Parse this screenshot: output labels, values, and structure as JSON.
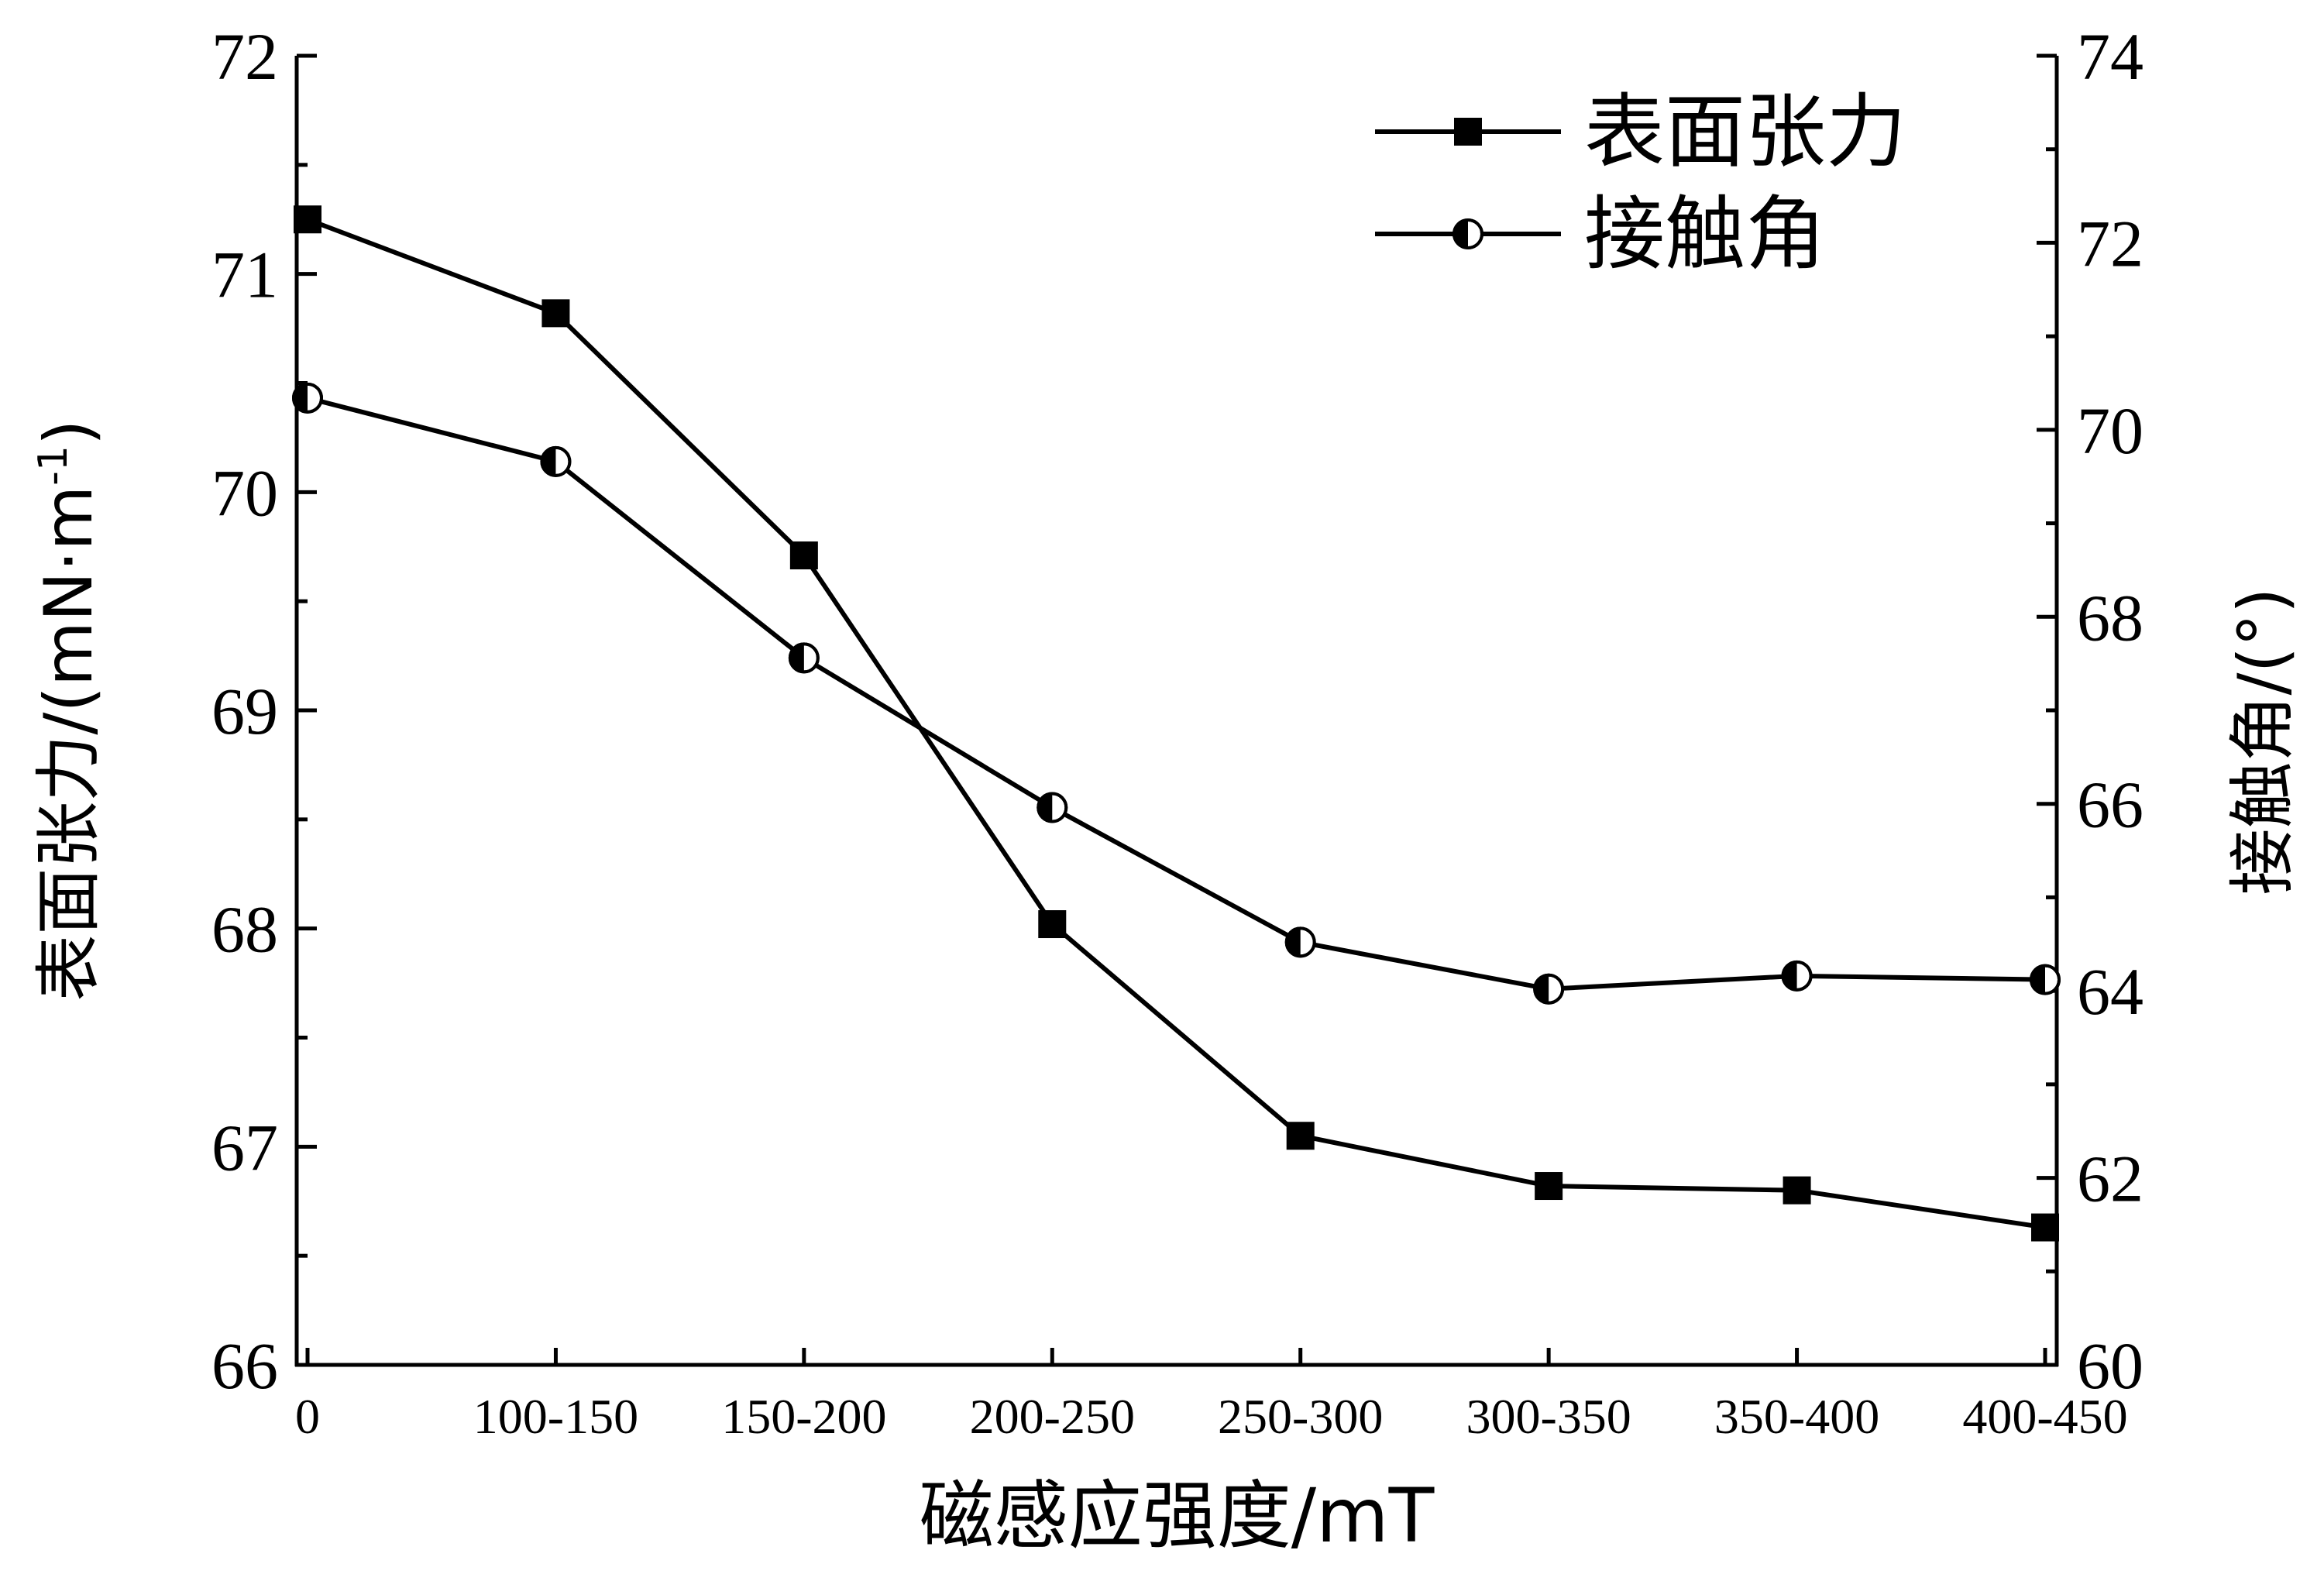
{
  "chart_data": {
    "type": "line",
    "categories": [
      "0",
      "100-150",
      "150-200",
      "200-250",
      "250-300",
      "300-350",
      "350-400",
      "400-450"
    ],
    "xlabel": "磁感应强度/mT",
    "ylabel_left": "表面张力/(mN·m",
    "ylabel_left_sup": "-1",
    "ylabel_left_close": ")",
    "ylabel_right": "接触角/(°)",
    "ylim_left": [
      66,
      72
    ],
    "yticks_left": [
      "66",
      "67",
      "68",
      "69",
      "70",
      "71",
      "72"
    ],
    "ylim_right": [
      60,
      74
    ],
    "yticks_right": [
      "60",
      "62",
      "64",
      "66",
      "68",
      "70",
      "72",
      "74"
    ],
    "legend_position": "top-right",
    "grid": false,
    "series": [
      {
        "name": "表面张力",
        "axis": "left",
        "marker": "filled-square",
        "color": "#000000",
        "values": [
          71.25,
          70.82,
          69.71,
          68.02,
          67.05,
          66.82,
          66.8,
          66.63
        ]
      },
      {
        "name": "接触角",
        "axis": "right",
        "marker": "half-filled-circle",
        "color": "#000000",
        "values": [
          70.34,
          69.66,
          67.56,
          65.96,
          64.52,
          64.02,
          64.16,
          64.12
        ]
      }
    ]
  }
}
